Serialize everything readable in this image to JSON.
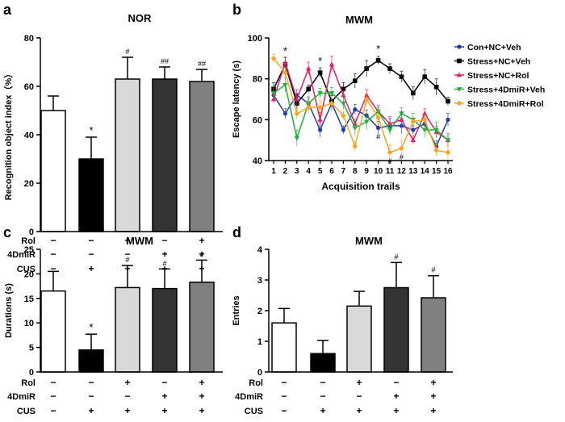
{
  "chart_data": [
    {
      "panel": "a",
      "type": "bar",
      "title": "NOR",
      "ylabel": "Recognition object index（%）",
      "ylim": [
        0,
        80
      ],
      "yticks": [
        "0",
        "20",
        "40",
        "60",
        "80"
      ],
      "values": [
        50,
        30,
        63,
        63,
        62
      ],
      "errors": [
        6,
        9,
        9,
        5,
        5
      ],
      "fills": [
        "#ffffff",
        "#000000",
        "#d9d9d9",
        "#333333",
        "#808080"
      ],
      "marks": [
        "",
        "*",
        "#",
        "##",
        "##"
      ],
      "treatment_labels": [
        "Rol",
        "4DmiR",
        "CUS"
      ],
      "treatments": [
        [
          "−",
          "−",
          "+",
          "−",
          "+"
        ],
        [
          "−",
          "−",
          "−",
          "+",
          "+"
        ],
        [
          "−",
          "+",
          "+",
          "+",
          "+"
        ]
      ]
    },
    {
      "panel": "b",
      "type": "line",
      "title": "MWM",
      "xlabel": "Acquisition trails",
      "ylabel": "Escape latency (s)",
      "ylim": [
        40,
        100
      ],
      "yticks": [
        "40",
        "60",
        "80",
        "100"
      ],
      "x": [
        "1",
        "2",
        "3",
        "4",
        "5",
        "6",
        "7",
        "8",
        "9",
        "10",
        "11",
        "12",
        "13",
        "14",
        "15",
        "16"
      ],
      "series": [
        {
          "name": "Con+NC+Veh",
          "color": "#1f3fa0",
          "values": [
            72,
            63,
            72,
            68,
            55,
            68,
            55,
            65,
            62,
            56,
            57,
            57,
            55,
            58,
            47,
            60
          ]
        },
        {
          "name": "Stress+NC+Veh",
          "color": "#000000",
          "values": [
            75,
            87,
            68,
            75,
            83,
            69,
            75,
            79,
            85,
            89,
            85,
            81,
            73,
            81,
            76,
            69
          ]
        },
        {
          "name": "Stress+NC+Rol",
          "color": "#e0206a",
          "values": [
            70,
            88,
            70,
            85,
            60,
            87,
            72,
            58,
            72,
            64,
            58,
            60,
            50,
            63,
            54,
            50
          ]
        },
        {
          "name": "Stress+4DmiR+Veh",
          "color": "#22b03a",
          "values": [
            73,
            77,
            51,
            68,
            73,
            73,
            68,
            56,
            59,
            64,
            55,
            63,
            60,
            55,
            55,
            50
          ]
        },
        {
          "name": "Stress+4DmiR+Rol",
          "color": "#f5a623",
          "values": [
            90,
            83,
            63,
            66,
            66,
            68,
            62,
            47,
            70,
            61,
            44,
            46,
            59,
            60,
            45,
            44
          ]
        }
      ],
      "annotations": [
        {
          "x": "2",
          "label": "*"
        },
        {
          "x": "5",
          "label": "*"
        },
        {
          "x": "10",
          "label": "*"
        },
        {
          "x": "10",
          "label": "#"
        },
        {
          "x": "11",
          "label": "#"
        },
        {
          "x": "12",
          "label": "#"
        }
      ]
    },
    {
      "panel": "c",
      "type": "bar",
      "title": "MWM",
      "ylabel": "Durations (s)",
      "ylim": [
        0,
        25
      ],
      "yticks": [
        "0",
        "5",
        "10",
        "15",
        "20",
        "25"
      ],
      "values": [
        16.5,
        4.5,
        17.2,
        17.0,
        18.3
      ],
      "errors": [
        4.0,
        3.2,
        4.5,
        4.0,
        4.5
      ],
      "fills": [
        "#ffffff",
        "#000000",
        "#d9d9d9",
        "#333333",
        "#808080"
      ],
      "marks": [
        "",
        "*",
        "#",
        "#",
        "#"
      ],
      "treatment_labels": [
        "Rol",
        "4DmiR",
        "CUS"
      ],
      "treatments": [
        [
          "−",
          "−",
          "+",
          "−",
          "+"
        ],
        [
          "−",
          "−",
          "−",
          "+",
          "+"
        ],
        [
          "−",
          "+",
          "+",
          "+",
          "+"
        ]
      ]
    },
    {
      "panel": "d",
      "type": "bar",
      "title": "MWM",
      "ylabel": "Entries",
      "ylim": [
        0,
        4
      ],
      "yticks": [
        "0",
        "1",
        "2",
        "3",
        "4"
      ],
      "values": [
        1.6,
        0.6,
        2.15,
        2.75,
        2.42
      ],
      "errors": [
        0.47,
        0.43,
        0.48,
        0.82,
        0.72
      ],
      "fills": [
        "#ffffff",
        "#000000",
        "#d9d9d9",
        "#333333",
        "#808080"
      ],
      "marks": [
        "",
        "",
        "",
        "#",
        "#"
      ],
      "treatment_labels": [
        "Rol",
        "4DmiR",
        "CUS"
      ],
      "treatments": [
        [
          "−",
          "−",
          "+",
          "−",
          "+"
        ],
        [
          "−",
          "−",
          "−",
          "+",
          "+"
        ],
        [
          "−",
          "+",
          "+",
          "+",
          "+"
        ]
      ]
    }
  ]
}
